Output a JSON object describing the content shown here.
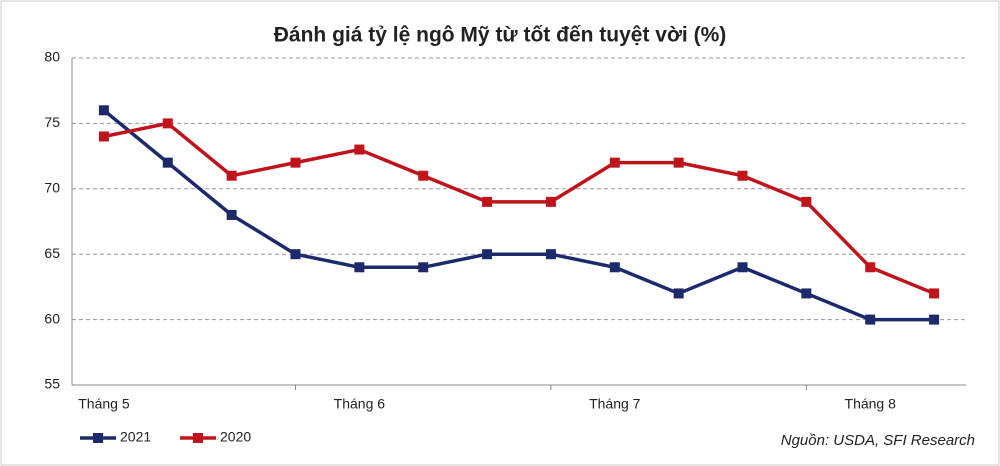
{
  "chart_data": {
    "type": "line",
    "title": "Đánh giá tỷ lệ ngô Mỹ từ tốt đến tuyệt vời (%)",
    "source": "Nguồn: USDA, SFI Research",
    "categories": [
      "Tháng 5",
      null,
      null,
      null,
      "Tháng 6",
      null,
      null,
      null,
      "Tháng 7",
      null,
      null,
      null,
      "Tháng 8",
      null
    ],
    "series": [
      {
        "name": "2021",
        "color": "#1c2a6b",
        "values": [
          76,
          72,
          68,
          65,
          64,
          64,
          65,
          65,
          64,
          62,
          64,
          62,
          60,
          60
        ]
      },
      {
        "name": "2020",
        "color": "#c0141c",
        "values": [
          74,
          75,
          71,
          72,
          73,
          71,
          69,
          69,
          72,
          72,
          71,
          69,
          64,
          62
        ]
      }
    ],
    "ylim": [
      55,
      80
    ],
    "yticks": [
      55,
      60,
      65,
      70,
      75,
      80
    ],
    "grid": true
  }
}
